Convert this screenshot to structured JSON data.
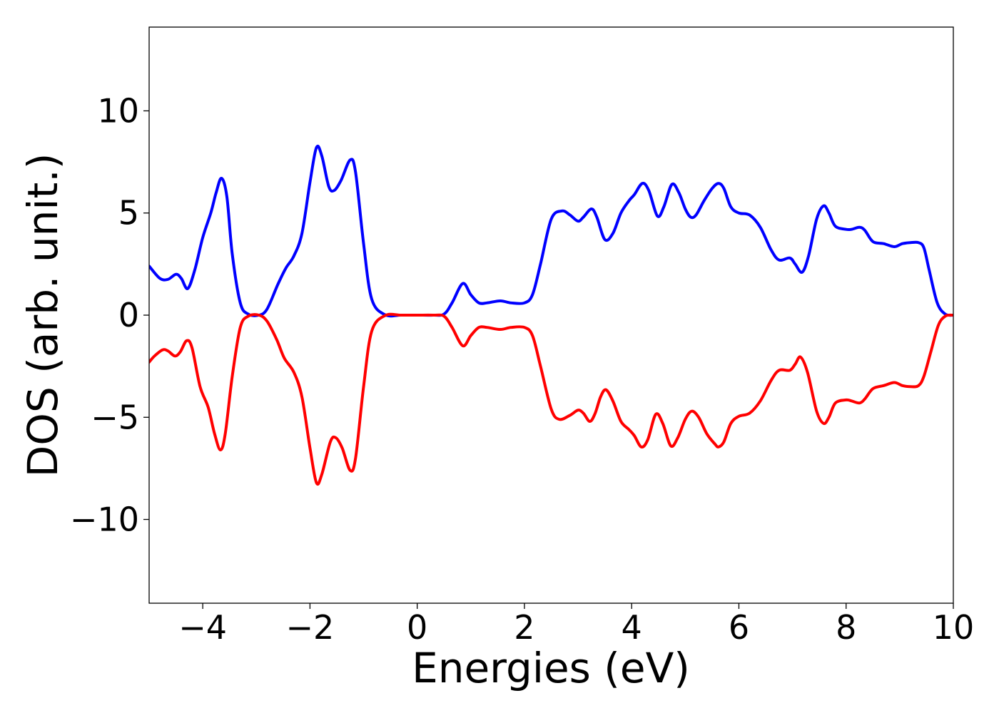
{
  "chart_data": {
    "type": "line",
    "title": "",
    "xlabel": "Energies (eV)",
    "ylabel": "DOS (arb. unit.)",
    "xlim": [
      -5,
      10
    ],
    "ylim": [
      -14.1,
      14.1
    ],
    "grid": false,
    "legend": "none",
    "xticks": [
      {
        "value": -4,
        "label": "−4"
      },
      {
        "value": -2,
        "label": "−2"
      },
      {
        "value": 0,
        "label": "0"
      },
      {
        "value": 2,
        "label": "2"
      },
      {
        "value": 4,
        "label": "4"
      },
      {
        "value": 6,
        "label": "6"
      },
      {
        "value": 8,
        "label": "8"
      },
      {
        "value": 10,
        "label": "10"
      }
    ],
    "yticks": [
      {
        "value": -10,
        "label": "−10"
      },
      {
        "value": -5,
        "label": "−5"
      },
      {
        "value": 0,
        "label": "0"
      },
      {
        "value": 5,
        "label": "5"
      },
      {
        "value": 10,
        "label": "10"
      }
    ],
    "series": [
      {
        "color": "#0000ff",
        "points": [
          [
            -5.0,
            2.4
          ],
          [
            -4.8,
            1.8
          ],
          [
            -4.65,
            1.75
          ],
          [
            -4.5,
            2.0
          ],
          [
            -4.4,
            1.8
          ],
          [
            -4.28,
            1.3
          ],
          [
            -4.15,
            2.2
          ],
          [
            -4.0,
            3.8
          ],
          [
            -3.85,
            5.0
          ],
          [
            -3.75,
            6.0
          ],
          [
            -3.65,
            6.7
          ],
          [
            -3.55,
            5.8
          ],
          [
            -3.45,
            3.0
          ],
          [
            -3.3,
            0.6
          ],
          [
            -3.15,
            0.05
          ],
          [
            -2.95,
            0.0
          ],
          [
            -2.8,
            0.3
          ],
          [
            -2.6,
            1.5
          ],
          [
            -2.45,
            2.3
          ],
          [
            -2.3,
            2.9
          ],
          [
            -2.15,
            4.0
          ],
          [
            -2.0,
            6.5
          ],
          [
            -1.88,
            8.2
          ],
          [
            -1.78,
            7.8
          ],
          [
            -1.65,
            6.3
          ],
          [
            -1.55,
            6.1
          ],
          [
            -1.42,
            6.6
          ],
          [
            -1.25,
            7.6
          ],
          [
            -1.15,
            7.0
          ],
          [
            -1.0,
            3.5
          ],
          [
            -0.85,
            0.8
          ],
          [
            -0.6,
            0.02
          ],
          [
            -0.3,
            0.0
          ],
          [
            0.0,
            0.0
          ],
          [
            0.3,
            0.0
          ],
          [
            0.5,
            0.05
          ],
          [
            0.65,
            0.6
          ],
          [
            0.85,
            1.55
          ],
          [
            1.0,
            1.0
          ],
          [
            1.15,
            0.6
          ],
          [
            1.3,
            0.6
          ],
          [
            1.55,
            0.7
          ],
          [
            1.75,
            0.6
          ],
          [
            2.0,
            0.6
          ],
          [
            2.15,
            1.0
          ],
          [
            2.3,
            2.5
          ],
          [
            2.5,
            4.7
          ],
          [
            2.7,
            5.1
          ],
          [
            2.85,
            4.9
          ],
          [
            3.0,
            4.6
          ],
          [
            3.1,
            4.8
          ],
          [
            3.25,
            5.2
          ],
          [
            3.35,
            4.8
          ],
          [
            3.5,
            3.7
          ],
          [
            3.65,
            4.0
          ],
          [
            3.8,
            5.0
          ],
          [
            3.95,
            5.6
          ],
          [
            4.05,
            5.9
          ],
          [
            4.2,
            6.45
          ],
          [
            4.32,
            6.1
          ],
          [
            4.48,
            4.85
          ],
          [
            4.6,
            5.3
          ],
          [
            4.75,
            6.4
          ],
          [
            4.88,
            6.0
          ],
          [
            5.0,
            5.2
          ],
          [
            5.1,
            4.8
          ],
          [
            5.2,
            4.9
          ],
          [
            5.35,
            5.6
          ],
          [
            5.5,
            6.2
          ],
          [
            5.62,
            6.45
          ],
          [
            5.72,
            6.2
          ],
          [
            5.85,
            5.3
          ],
          [
            6.0,
            5.0
          ],
          [
            6.2,
            4.9
          ],
          [
            6.4,
            4.3
          ],
          [
            6.6,
            3.2
          ],
          [
            6.75,
            2.7
          ],
          [
            6.95,
            2.8
          ],
          [
            7.05,
            2.5
          ],
          [
            7.18,
            2.1
          ],
          [
            7.3,
            2.9
          ],
          [
            7.45,
            4.7
          ],
          [
            7.58,
            5.35
          ],
          [
            7.68,
            5.0
          ],
          [
            7.8,
            4.35
          ],
          [
            8.0,
            4.2
          ],
          [
            8.1,
            4.2
          ],
          [
            8.25,
            4.3
          ],
          [
            8.35,
            4.15
          ],
          [
            8.5,
            3.6
          ],
          [
            8.7,
            3.5
          ],
          [
            8.9,
            3.35
          ],
          [
            9.05,
            3.5
          ],
          [
            9.2,
            3.55
          ],
          [
            9.35,
            3.55
          ],
          [
            9.45,
            3.3
          ],
          [
            9.55,
            2.2
          ],
          [
            9.7,
            0.6
          ],
          [
            9.85,
            0.05
          ],
          [
            10.0,
            0.0
          ]
        ]
      },
      {
        "color": "#ff0000",
        "points": [
          [
            -5.0,
            -2.3
          ],
          [
            -4.9,
            -2.0
          ],
          [
            -4.75,
            -1.7
          ],
          [
            -4.65,
            -1.75
          ],
          [
            -4.52,
            -2.0
          ],
          [
            -4.42,
            -1.8
          ],
          [
            -4.3,
            -1.25
          ],
          [
            -4.2,
            -1.6
          ],
          [
            -4.05,
            -3.5
          ],
          [
            -3.9,
            -4.5
          ],
          [
            -3.78,
            -5.8
          ],
          [
            -3.67,
            -6.6
          ],
          [
            -3.58,
            -5.8
          ],
          [
            -3.45,
            -3.0
          ],
          [
            -3.3,
            -0.6
          ],
          [
            -3.15,
            -0.05
          ],
          [
            -2.95,
            0.0
          ],
          [
            -2.8,
            -0.3
          ],
          [
            -2.62,
            -1.2
          ],
          [
            -2.48,
            -2.1
          ],
          [
            -2.3,
            -2.8
          ],
          [
            -2.15,
            -4.0
          ],
          [
            -2.0,
            -6.5
          ],
          [
            -1.88,
            -8.2
          ],
          [
            -1.78,
            -7.8
          ],
          [
            -1.62,
            -6.2
          ],
          [
            -1.52,
            -6.0
          ],
          [
            -1.4,
            -6.5
          ],
          [
            -1.25,
            -7.6
          ],
          [
            -1.15,
            -7.0
          ],
          [
            -1.0,
            -3.5
          ],
          [
            -0.85,
            -0.8
          ],
          [
            -0.6,
            -0.02
          ],
          [
            -0.3,
            0.0
          ],
          [
            0.0,
            0.0
          ],
          [
            0.3,
            0.0
          ],
          [
            0.5,
            -0.05
          ],
          [
            0.65,
            -0.6
          ],
          [
            0.85,
            -1.5
          ],
          [
            1.0,
            -1.0
          ],
          [
            1.15,
            -0.6
          ],
          [
            1.3,
            -0.6
          ],
          [
            1.55,
            -0.7
          ],
          [
            1.75,
            -0.6
          ],
          [
            2.0,
            -0.6
          ],
          [
            2.15,
            -1.0
          ],
          [
            2.3,
            -2.5
          ],
          [
            2.5,
            -4.6
          ],
          [
            2.65,
            -5.1
          ],
          [
            2.85,
            -4.9
          ],
          [
            3.0,
            -4.65
          ],
          [
            3.1,
            -4.8
          ],
          [
            3.22,
            -5.2
          ],
          [
            3.32,
            -4.8
          ],
          [
            3.42,
            -4.0
          ],
          [
            3.52,
            -3.65
          ],
          [
            3.65,
            -4.2
          ],
          [
            3.8,
            -5.2
          ],
          [
            3.95,
            -5.6
          ],
          [
            4.05,
            -5.9
          ],
          [
            4.18,
            -6.45
          ],
          [
            4.3,
            -6.1
          ],
          [
            4.45,
            -4.85
          ],
          [
            4.58,
            -5.3
          ],
          [
            4.73,
            -6.4
          ],
          [
            4.86,
            -6.0
          ],
          [
            5.0,
            -5.1
          ],
          [
            5.12,
            -4.7
          ],
          [
            5.25,
            -5.0
          ],
          [
            5.4,
            -5.8
          ],
          [
            5.55,
            -6.3
          ],
          [
            5.62,
            -6.45
          ],
          [
            5.72,
            -6.2
          ],
          [
            5.85,
            -5.3
          ],
          [
            6.0,
            -4.95
          ],
          [
            6.2,
            -4.8
          ],
          [
            6.4,
            -4.2
          ],
          [
            6.6,
            -3.2
          ],
          [
            6.75,
            -2.7
          ],
          [
            6.95,
            -2.7
          ],
          [
            7.05,
            -2.4
          ],
          [
            7.15,
            -2.05
          ],
          [
            7.28,
            -2.8
          ],
          [
            7.45,
            -4.7
          ],
          [
            7.58,
            -5.3
          ],
          [
            7.68,
            -5.0
          ],
          [
            7.8,
            -4.3
          ],
          [
            8.0,
            -4.15
          ],
          [
            8.1,
            -4.2
          ],
          [
            8.25,
            -4.3
          ],
          [
            8.35,
            -4.1
          ],
          [
            8.5,
            -3.6
          ],
          [
            8.7,
            -3.45
          ],
          [
            8.9,
            -3.3
          ],
          [
            9.05,
            -3.45
          ],
          [
            9.2,
            -3.5
          ],
          [
            9.35,
            -3.45
          ],
          [
            9.45,
            -3.0
          ],
          [
            9.58,
            -1.8
          ],
          [
            9.72,
            -0.5
          ],
          [
            9.85,
            -0.05
          ],
          [
            10.0,
            0.0
          ]
        ]
      }
    ]
  }
}
